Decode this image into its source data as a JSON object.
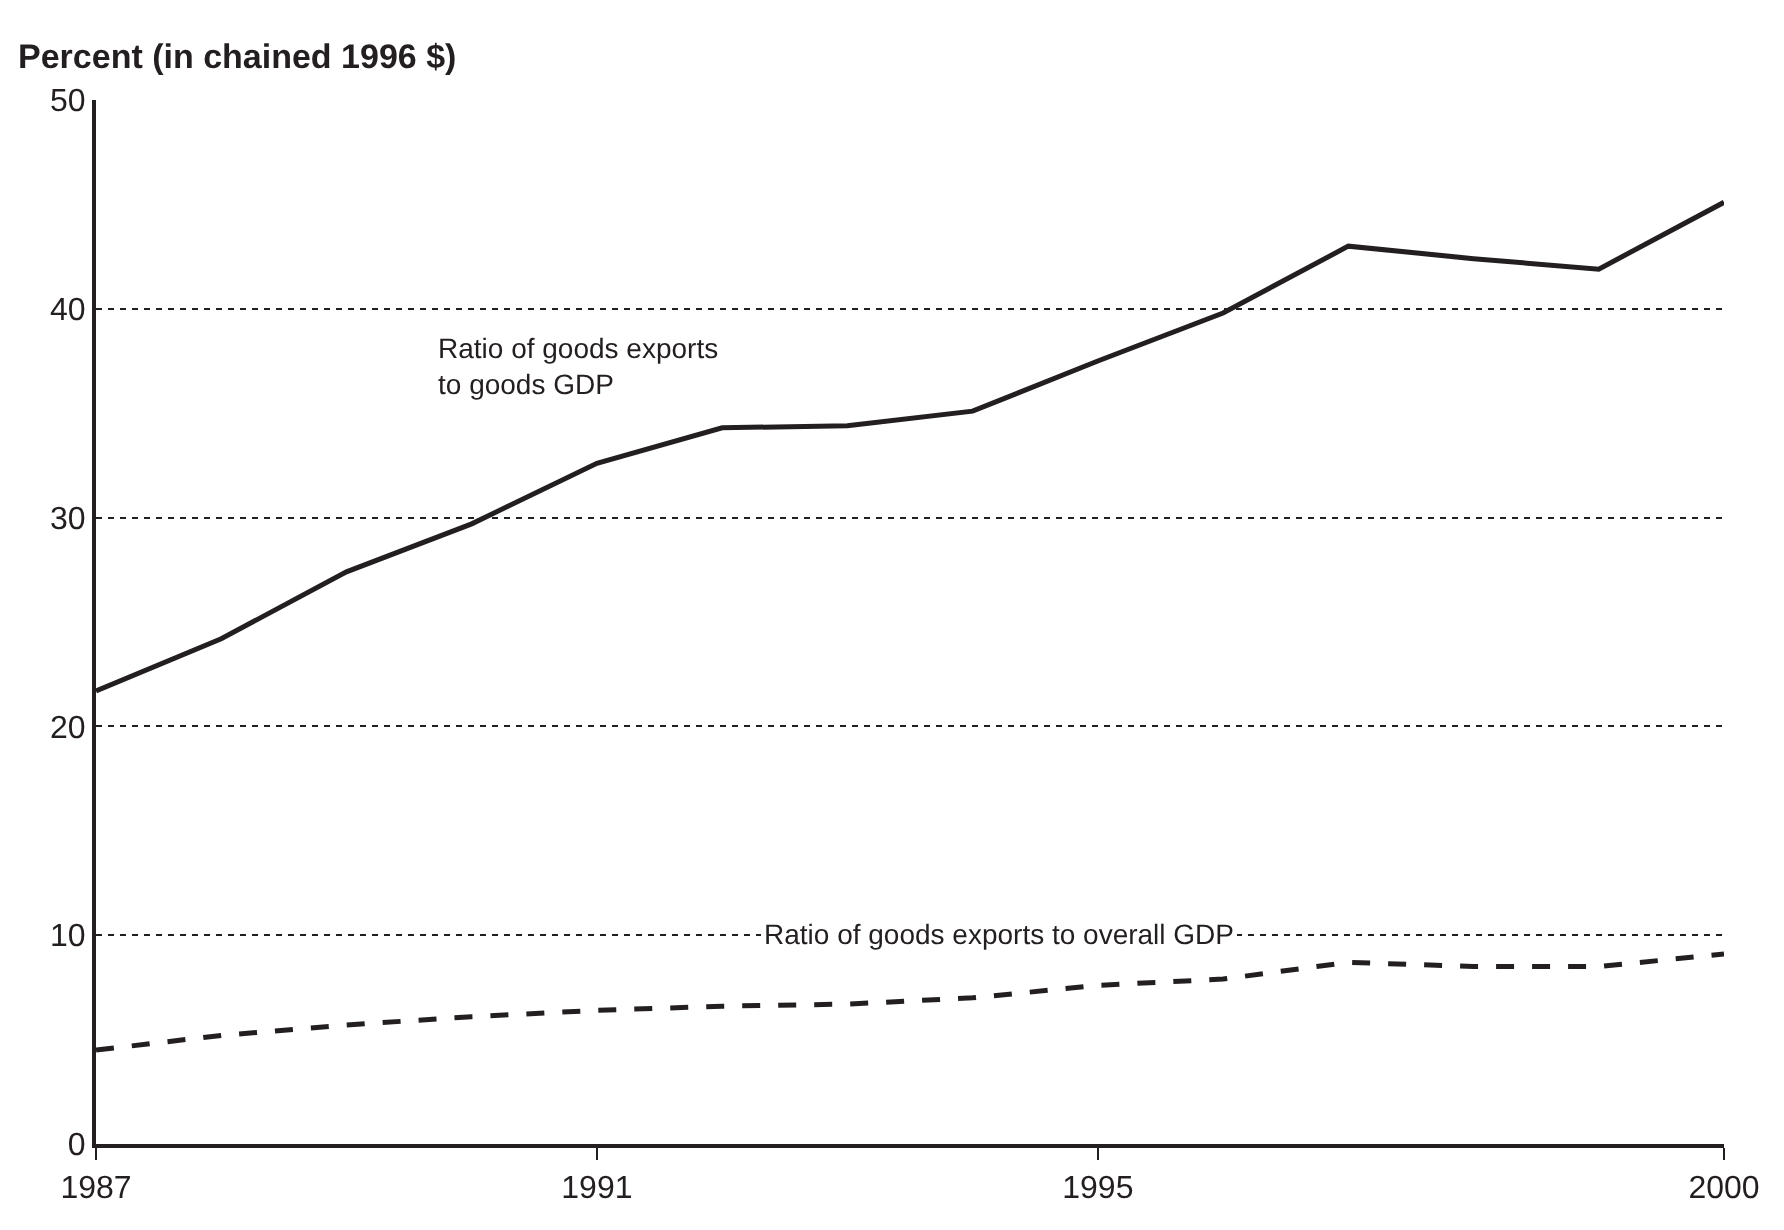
{
  "chart_data": {
    "type": "line",
    "ylabel": "Percent (in chained 1996 $)",
    "x": [
      1987,
      1988,
      1989,
      1990,
      1991,
      1992,
      1993,
      1994,
      1995,
      1996,
      1997,
      1998,
      1999,
      2000
    ],
    "series": [
      {
        "name": "Ratio of goods exports\nto goods GDP",
        "color": "#231f20",
        "line_style": "solid",
        "values": [
          21.7,
          24.2,
          27.4,
          29.7,
          32.6,
          34.3,
          34.4,
          35.1,
          37.5,
          39.8,
          43.0,
          42.4,
          41.9,
          45.1
        ]
      },
      {
        "name": "Ratio of goods exports to overall GDP",
        "color": "#231f20",
        "line_style": "dashed",
        "values": [
          4.5,
          5.2,
          5.7,
          6.1,
          6.4,
          6.6,
          6.7,
          7.0,
          7.6,
          7.9,
          8.7,
          8.5,
          8.5,
          9.1
        ]
      }
    ],
    "xlim": [
      1987,
      2000
    ],
    "xticks": [
      1987,
      1991,
      1995,
      2000
    ],
    "ylim": [
      0,
      50
    ],
    "yticks": [
      0,
      10,
      20,
      30,
      40,
      50
    ],
    "grid": "y",
    "legend": false,
    "marker": "none"
  }
}
